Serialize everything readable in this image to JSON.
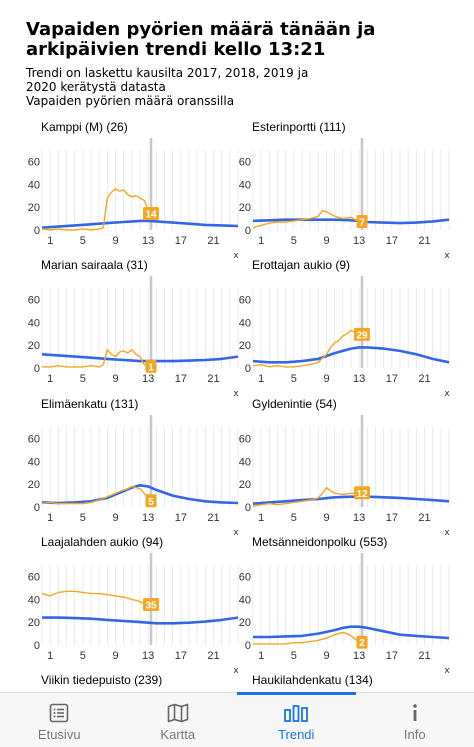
{
  "header": {
    "title": "Vapaiden pyörien määrä tänään ja arkipäivien trendi kello 13:21",
    "subtitle_lines": [
      "Trendi on laskettu kausilta 2017, 2018, 2019 ja",
      "2020 kerätystä datasta",
      "Vapaiden pyörien määrä oranssilla"
    ]
  },
  "colors": {
    "trend": "#3366e6",
    "today": "#f5a623",
    "now_line": "#c8c8c8",
    "grid": "#e6e6e6",
    "active_tab": "#1a73e8"
  },
  "chart_data": [
    {
      "type": "line",
      "title": "Kamppi (M) (26)",
      "x_ticks": [
        "1",
        "5",
        "9",
        "13",
        "17",
        "21"
      ],
      "y_ticks": [
        "0",
        "20",
        "40",
        "60"
      ],
      "ylim": [
        0,
        70
      ],
      "xlim": [
        0,
        24
      ],
      "x_axis_mark": "x",
      "now_hour": 13.35,
      "badge": "14",
      "series": [
        {
          "role": "trend",
          "x": [
            0,
            2,
            4,
            6,
            8,
            10,
            12,
            13,
            14,
            16,
            18,
            20,
            22,
            24
          ],
          "y": [
            2,
            3,
            4,
            5,
            6,
            7,
            8,
            8,
            7.5,
            6.5,
            5.5,
            4.5,
            4,
            3.5
          ]
        },
        {
          "role": "today",
          "x": [
            0,
            1,
            2,
            3,
            4,
            5,
            6,
            7,
            7.5,
            8,
            8.5,
            9,
            9.5,
            10,
            10.5,
            11,
            11.5,
            12,
            12.5,
            13,
            13.35
          ],
          "y": [
            1,
            0,
            1,
            0,
            0,
            1,
            0,
            1,
            2,
            28,
            33,
            36,
            34,
            35,
            31,
            29,
            30,
            28,
            26,
            18,
            14
          ]
        }
      ]
    },
    {
      "type": "line",
      "title": "Esterinportti (111)",
      "x_ticks": [
        "1",
        "5",
        "9",
        "13",
        "17",
        "21"
      ],
      "y_ticks": [
        "0",
        "20",
        "40",
        "60"
      ],
      "ylim": [
        0,
        70
      ],
      "xlim": [
        0,
        24
      ],
      "x_axis_mark": "x",
      "now_hour": 13.35,
      "badge": "7",
      "series": [
        {
          "role": "trend",
          "x": [
            0,
            2,
            4,
            6,
            8,
            10,
            12,
            13,
            14,
            16,
            18,
            20,
            22,
            24
          ],
          "y": [
            8,
            8.5,
            9,
            9,
            9,
            9,
            8.5,
            8,
            7,
            6.5,
            6,
            6.5,
            7.5,
            9
          ]
        },
        {
          "role": "today",
          "x": [
            0,
            1,
            2,
            3,
            4,
            5,
            6,
            7,
            8,
            8.5,
            9,
            9.5,
            10,
            11,
            12,
            12.5,
            13,
            13.35
          ],
          "y": [
            2,
            4,
            6,
            7,
            7,
            8,
            9,
            10,
            12,
            17,
            16,
            14,
            12,
            10,
            11,
            9,
            8,
            7
          ]
        }
      ]
    },
    {
      "type": "line",
      "title": "Marian sairaala (31)",
      "x_ticks": [
        "1",
        "5",
        "9",
        "13",
        "17",
        "21"
      ],
      "y_ticks": [
        "0",
        "20",
        "40",
        "60"
      ],
      "ylim": [
        0,
        70
      ],
      "xlim": [
        0,
        24
      ],
      "x_axis_mark": "x",
      "now_hour": 13.35,
      "badge": "1",
      "series": [
        {
          "role": "trend",
          "x": [
            0,
            2,
            4,
            6,
            8,
            10,
            12,
            13,
            14,
            16,
            18,
            20,
            22,
            24
          ],
          "y": [
            12,
            11,
            10,
            9,
            8,
            7,
            6,
            6,
            6,
            6,
            6.5,
            7,
            8,
            10
          ]
        },
        {
          "role": "today",
          "x": [
            0,
            1,
            2,
            3,
            4,
            5,
            6,
            7,
            7.5,
            8,
            8.5,
            9,
            9.5,
            10,
            10.5,
            11,
            11.5,
            12,
            12.5,
            13,
            13.35
          ],
          "y": [
            1,
            1,
            2,
            1,
            1,
            1,
            2,
            1,
            3,
            16,
            12,
            10,
            14,
            15,
            13,
            16,
            12,
            10,
            3,
            2,
            1
          ]
        }
      ]
    },
    {
      "type": "line",
      "title": "Erottajan aukio (9)",
      "x_ticks": [
        "1",
        "5",
        "9",
        "13",
        "17",
        "21"
      ],
      "y_ticks": [
        "0",
        "20",
        "40",
        "60"
      ],
      "ylim": [
        0,
        70
      ],
      "xlim": [
        0,
        24
      ],
      "x_axis_mark": "x",
      "now_hour": 13.35,
      "badge": "29",
      "series": [
        {
          "role": "trend",
          "x": [
            0,
            2,
            4,
            6,
            8,
            10,
            12,
            13,
            14,
            16,
            18,
            20,
            22,
            24
          ],
          "y": [
            6,
            5,
            5,
            6,
            8,
            13,
            17,
            18,
            18,
            17,
            15,
            12,
            8,
            5
          ]
        },
        {
          "role": "today",
          "x": [
            0,
            1,
            2,
            3,
            4,
            5,
            6,
            7,
            8,
            9,
            9.5,
            10,
            10.5,
            11,
            11.5,
            12,
            12.5,
            13,
            13.35
          ],
          "y": [
            2,
            3,
            1,
            2,
            1,
            1,
            2,
            3,
            5,
            12,
            18,
            22,
            24,
            28,
            30,
            33,
            31,
            32,
            29
          ]
        }
      ]
    },
    {
      "type": "line",
      "title": "Elimäenkatu (131)",
      "x_ticks": [
        "1",
        "5",
        "9",
        "13",
        "17",
        "21"
      ],
      "y_ticks": [
        "0",
        "20",
        "40",
        "60"
      ],
      "ylim": [
        0,
        70
      ],
      "xlim": [
        0,
        24
      ],
      "x_axis_mark": "x",
      "now_hour": 13.35,
      "badge": "5",
      "series": [
        {
          "role": "trend",
          "x": [
            0,
            2,
            4,
            6,
            8,
            10,
            11,
            12,
            13,
            14,
            16,
            18,
            20,
            22,
            24
          ],
          "y": [
            4,
            3.5,
            4,
            5,
            8,
            14,
            17,
            19,
            18,
            15,
            10,
            7,
            5,
            4,
            3.5
          ]
        },
        {
          "role": "today",
          "x": [
            0,
            1,
            2,
            3,
            4,
            5,
            6,
            7,
            8,
            9,
            10,
            10.5,
            11,
            11.5,
            12,
            12.5,
            13,
            13.35
          ],
          "y": [
            3,
            4,
            3,
            3,
            3,
            3,
            4,
            6,
            9,
            12,
            15,
            16,
            18,
            17,
            16,
            12,
            8,
            5
          ]
        }
      ]
    },
    {
      "type": "line",
      "title": "Gyldenintie (54)",
      "x_ticks": [
        "1",
        "5",
        "9",
        "13",
        "17",
        "21"
      ],
      "y_ticks": [
        "0",
        "20",
        "40",
        "60"
      ],
      "ylim": [
        0,
        70
      ],
      "xlim": [
        0,
        24
      ],
      "x_axis_mark": "x",
      "now_hour": 13.35,
      "badge": "12",
      "series": [
        {
          "role": "trend",
          "x": [
            0,
            2,
            4,
            6,
            8,
            10,
            12,
            13,
            14,
            16,
            18,
            20,
            22,
            24
          ],
          "y": [
            3,
            4,
            5,
            6,
            7,
            8.5,
            9,
            9,
            9,
            8.5,
            8,
            7,
            6,
            5
          ]
        },
        {
          "role": "today",
          "x": [
            0,
            1,
            2,
            3,
            4,
            5,
            6,
            7,
            8,
            8.5,
            9,
            9.5,
            10,
            11,
            12,
            12.5,
            13,
            13.35
          ],
          "y": [
            1,
            2,
            3,
            2,
            3,
            4,
            5,
            6,
            8,
            12,
            17,
            14,
            12,
            11,
            12,
            12,
            13,
            12
          ]
        }
      ]
    },
    {
      "type": "line",
      "title": "Laajalahden aukio (94)",
      "x_ticks": [
        "1",
        "5",
        "9",
        "13",
        "17",
        "21"
      ],
      "y_ticks": [
        "0",
        "20",
        "40",
        "60"
      ],
      "ylim": [
        0,
        70
      ],
      "xlim": [
        0,
        24
      ],
      "x_axis_mark": "x",
      "now_hour": 13.35,
      "badge": "35",
      "series": [
        {
          "role": "trend",
          "x": [
            0,
            2,
            4,
            6,
            8,
            10,
            12,
            13,
            14,
            16,
            18,
            20,
            22,
            24
          ],
          "y": [
            24,
            24,
            23.5,
            23,
            22,
            21,
            20,
            19.5,
            19,
            19,
            19.5,
            20.5,
            22,
            24
          ]
        },
        {
          "role": "today",
          "x": [
            0,
            1,
            2,
            3,
            4,
            5,
            6,
            7,
            8,
            9,
            10,
            11,
            12,
            12.5,
            13,
            13.35
          ],
          "y": [
            45,
            43,
            46,
            47,
            47,
            46,
            45,
            45,
            44,
            43,
            42,
            40,
            38,
            36,
            38,
            35
          ]
        }
      ]
    },
    {
      "type": "line",
      "title": "Metsänneidonpolku (553)",
      "x_ticks": [
        "1",
        "5",
        "9",
        "13",
        "17",
        "21"
      ],
      "y_ticks": [
        "0",
        "20",
        "40",
        "60"
      ],
      "ylim": [
        0,
        70
      ],
      "xlim": [
        0,
        24
      ],
      "x_axis_mark": "x",
      "now_hour": 13.35,
      "badge": "2",
      "series": [
        {
          "role": "trend",
          "x": [
            0,
            2,
            4,
            6,
            8,
            10,
            11,
            12,
            13,
            14,
            16,
            18,
            20,
            22,
            24
          ],
          "y": [
            7,
            7,
            7.5,
            8,
            10,
            13,
            15,
            16,
            16,
            15,
            12,
            9,
            8,
            7,
            6
          ]
        },
        {
          "role": "today",
          "x": [
            0,
            1,
            2,
            3,
            4,
            5,
            6,
            7,
            8,
            9,
            10,
            10.5,
            11,
            11.5,
            12,
            12.5,
            13,
            13.35
          ],
          "y": [
            1,
            1,
            1,
            1,
            1,
            2,
            2,
            3,
            4,
            6,
            9,
            10,
            11,
            10,
            8,
            5,
            3,
            2
          ]
        }
      ]
    }
  ],
  "partial_titles": [
    "Viikin tiedepuisto (239)",
    "Haukilahdenkatu (134)"
  ],
  "tabs": [
    {
      "label": "Etusivu",
      "icon": "list-icon",
      "active": false
    },
    {
      "label": "Kartta",
      "icon": "map-icon",
      "active": false
    },
    {
      "label": "Trendi",
      "icon": "bar-chart-icon",
      "active": true
    },
    {
      "label": "Info",
      "icon": "info-icon",
      "active": false
    }
  ]
}
